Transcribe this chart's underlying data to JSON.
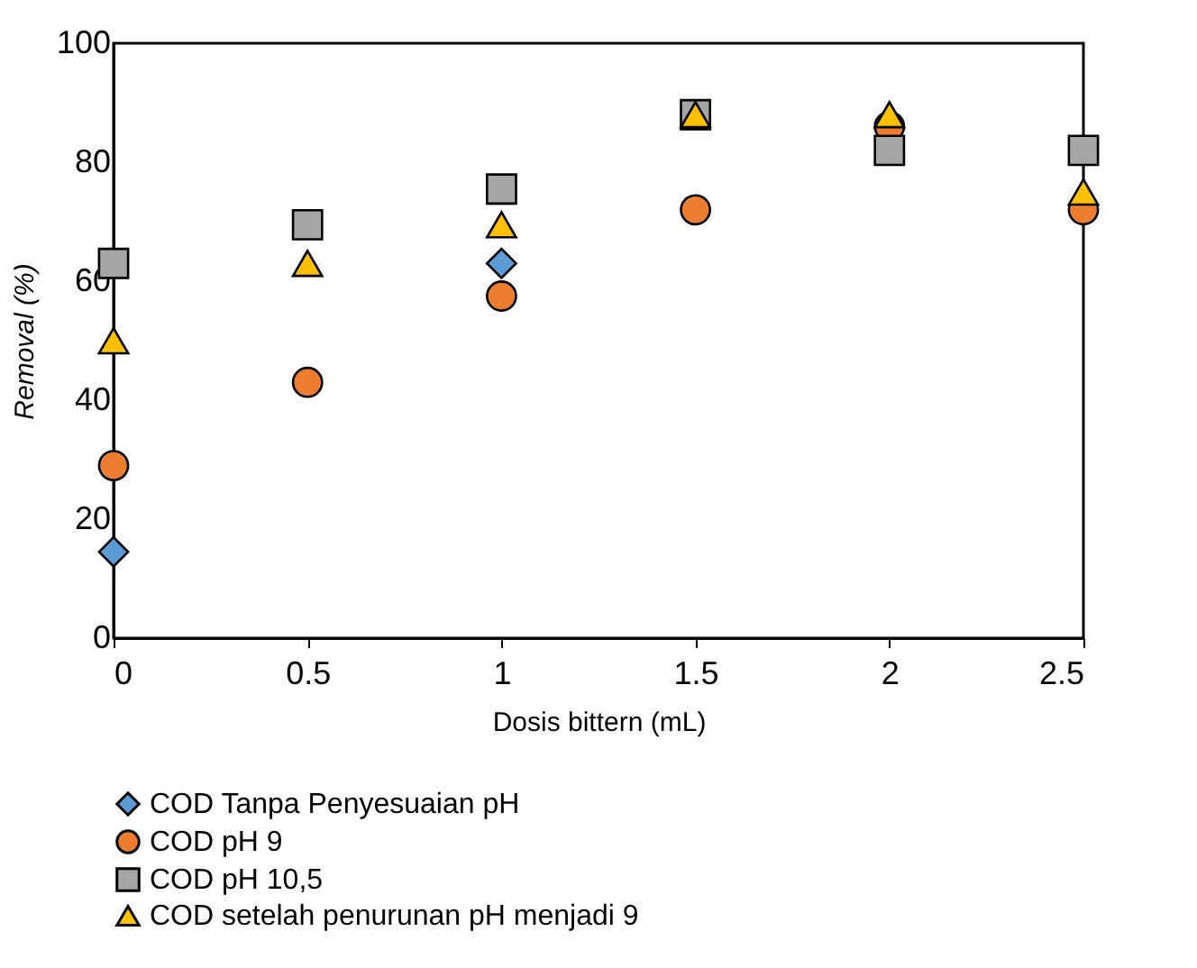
{
  "chart_data": {
    "type": "scatter",
    "xlabel": "Dosis bittern (mL)",
    "ylabel": "Removal (%)",
    "x": [
      0,
      0.5,
      1,
      1.5,
      2,
      2.5
    ],
    "series": [
      {
        "name": "COD Tanpa Penyesuaian pH",
        "color": "#5b9bd5",
        "marker": "diamond",
        "values": [
          14.5,
          null,
          63,
          null,
          null,
          null
        ]
      },
      {
        "name": "COD pH 9",
        "color": "#ed7d31",
        "marker": "circle",
        "values": [
          29,
          43,
          57.5,
          72,
          86,
          72
        ]
      },
      {
        "name": "COD pH 10,5",
        "color": "#a5a5a5",
        "marker": "square",
        "values": [
          63,
          69.5,
          75.5,
          88,
          82,
          82
        ]
      },
      {
        "name": "COD setelah penurunan pH menjadi 9",
        "color": "#ffc000",
        "marker": "triangle",
        "values": [
          50,
          63,
          69.5,
          88,
          88,
          75
        ]
      }
    ],
    "xlim": [
      0,
      2.5
    ],
    "xticks": [
      0,
      0.5,
      1,
      1.5,
      2,
      2.5
    ],
    "ylim": [
      0,
      100
    ],
    "yticks": [
      0,
      20,
      40,
      60,
      80,
      100
    ],
    "grid": false,
    "legend": "bottom"
  }
}
